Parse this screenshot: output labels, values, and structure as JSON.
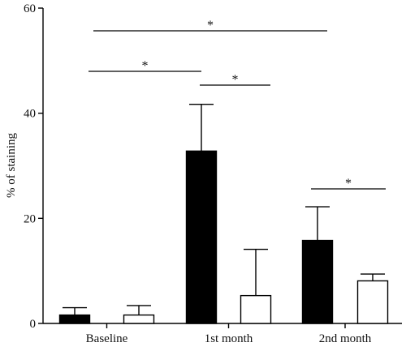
{
  "chart_data": {
    "type": "bar",
    "title": "",
    "xlabel": "",
    "ylabel": "% of staining",
    "ylim": [
      0,
      60
    ],
    "yticks": [
      0,
      20,
      40,
      60
    ],
    "grid": false,
    "categories": [
      "Baseline",
      "1st month",
      "2nd month"
    ],
    "series": [
      {
        "fill": "#000000",
        "values": [
          1.6,
          32.8,
          15.8
        ],
        "errors": [
          1.4,
          8.9,
          6.4
        ]
      },
      {
        "fill": "#ffffff",
        "values": [
          1.6,
          5.3,
          8.1
        ],
        "errors": [
          1.8,
          8.8,
          1.3
        ]
      }
    ],
    "significance": [
      {
        "from": {
          "category": 0,
          "series": 0
        },
        "to": {
          "category": 2,
          "series": 0
        },
        "label": "*"
      },
      {
        "from": {
          "category": 0,
          "series": 0
        },
        "to": {
          "category": 1,
          "series": 0
        },
        "label": "*"
      },
      {
        "from": {
          "category": 1,
          "series": 0
        },
        "to": {
          "category": 1,
          "series": 1
        },
        "label": "*"
      },
      {
        "from": {
          "category": 2,
          "series": 0
        },
        "to": {
          "category": 2,
          "series": 1
        },
        "label": "*"
      }
    ]
  }
}
